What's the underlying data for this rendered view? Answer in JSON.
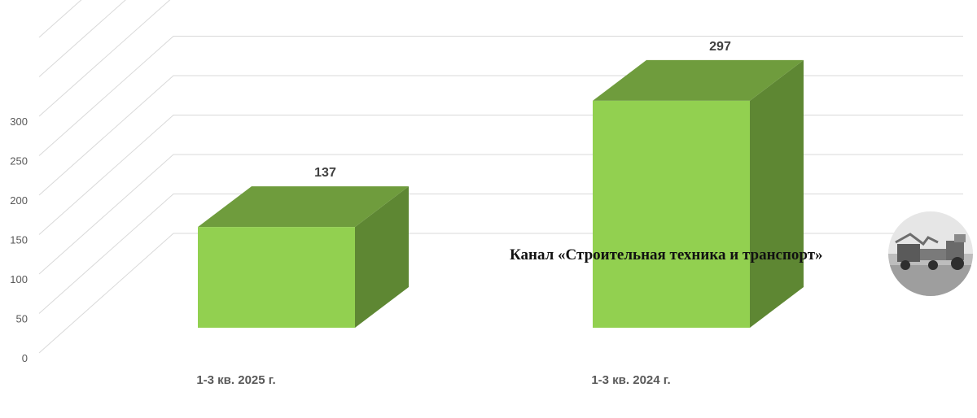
{
  "chart_data": {
    "type": "bar",
    "categories": [
      "1-3 кв. 2025 г.",
      "1-3 кв. 2024 г."
    ],
    "values": [
      137,
      297
    ],
    "y_ticks": [
      0,
      50,
      100,
      150,
      200,
      250,
      300
    ],
    "ylim": [
      0,
      300
    ],
    "grid": true,
    "legend": "none",
    "colors": {
      "front": "#92d050",
      "top": "#6f9c3d",
      "side": "#5e8733",
      "grid": "#d9d9d9"
    }
  },
  "watermark": {
    "text": "Канал «Строительная техника и транспорт»",
    "image": "construction-vehicles-photo"
  }
}
